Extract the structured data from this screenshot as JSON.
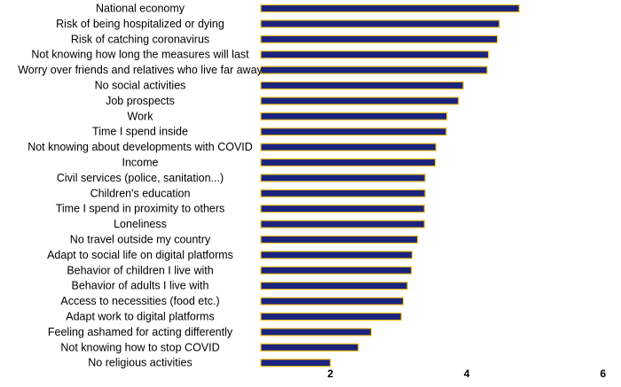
{
  "chart_data": {
    "type": "bar",
    "orientation": "horizontal",
    "categories": [
      "National economy",
      "Risk of being hospitalized or dying",
      "Risk of catching coronavirus",
      "Not knowing how long the measures will last",
      "Worry over friends and relatives who live far away",
      "No social activities",
      "Job prospects",
      "Work",
      "Time I spend inside",
      "Not knowing about developments with COVID",
      "Income",
      "Civil services (police, sanitation...)",
      "Children's education",
      "Time I spend in proximity to others",
      "Loneliness",
      "No travel outside my country",
      "Adapt to social life on digital platforms",
      "Behavior of children I live with",
      "Behavior of adults I live with",
      "Access to necessities (food etc.)",
      "Adapt work to digital platforms",
      "Feeling ashamed for acting differently",
      "Not knowing how to stop COVID",
      "No religious activities"
    ],
    "values": [
      4.77,
      4.48,
      4.45,
      4.32,
      4.3,
      3.95,
      3.88,
      3.71,
      3.7,
      3.55,
      3.54,
      3.39,
      3.39,
      3.38,
      3.38,
      3.28,
      3.2,
      3.19,
      3.13,
      3.07,
      3.04,
      2.6,
      2.41,
      2.0
    ],
    "xlim": [
      0.98,
      6.03
    ],
    "ticks": [
      {
        "value": 2,
        "label": "2"
      },
      {
        "value": 4,
        "label": "4"
      },
      {
        "value": 6,
        "label": "6"
      }
    ],
    "bar_fill": "#1a237e",
    "bar_edge": "#f0c020",
    "title": "",
    "xlabel": "",
    "ylabel": "",
    "grid": false,
    "legend": "none"
  }
}
